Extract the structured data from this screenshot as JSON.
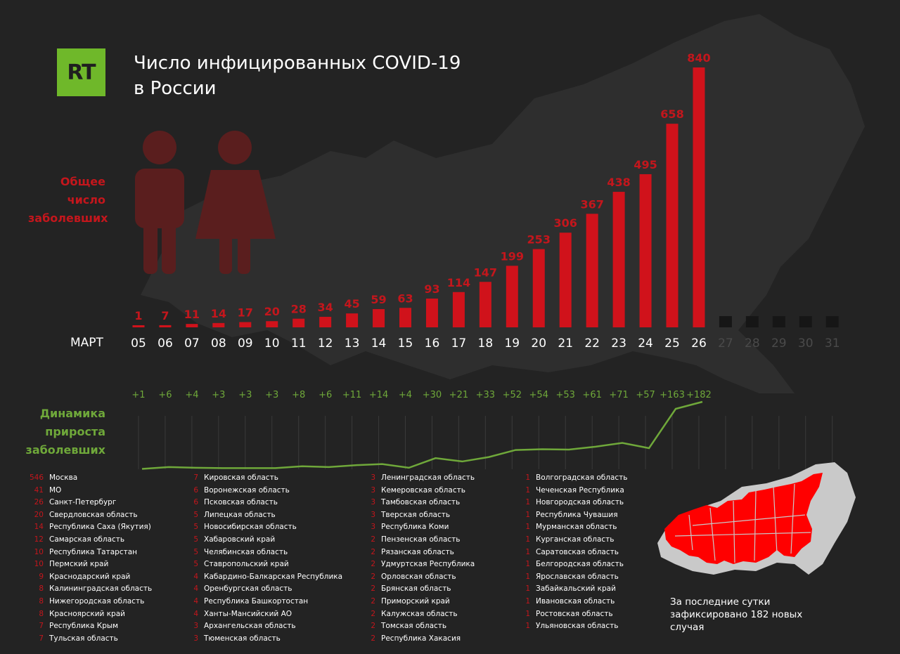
{
  "logo": "RT",
  "title_line1": "Число инфицированных COVID-19",
  "title_line2": "в России",
  "label_total": [
    "Общее",
    "число",
    "заболевших"
  ],
  "label_dynamics": [
    "Динамика",
    "прироста",
    "заболевших"
  ],
  "month_label": "МАРТ",
  "footnote": "За последние сутки зафиксировано 182 новых случая",
  "colors": {
    "bar": "#d0121b",
    "label": "#c4161c",
    "line": "#6fa83a",
    "future": "#161616",
    "background": "#232323"
  },
  "chart_data": [
    {
      "type": "bar",
      "categories": [
        "05",
        "06",
        "07",
        "08",
        "09",
        "10",
        "11",
        "12",
        "13",
        "14",
        "15",
        "16",
        "17",
        "18",
        "19",
        "20",
        "21",
        "22",
        "23",
        "24",
        "25",
        "26"
      ],
      "future_categories": [
        "27",
        "28",
        "29",
        "30",
        "31"
      ],
      "values": [
        1,
        7,
        11,
        14,
        17,
        20,
        28,
        34,
        45,
        59,
        63,
        93,
        114,
        147,
        199,
        253,
        306,
        367,
        438,
        495,
        658,
        840
      ],
      "ylim": [
        0,
        840
      ]
    },
    {
      "type": "line",
      "categories": [
        "05",
        "06",
        "07",
        "08",
        "09",
        "10",
        "11",
        "12",
        "13",
        "14",
        "15",
        "16",
        "17",
        "18",
        "19",
        "20",
        "21",
        "22",
        "23",
        "24",
        "25",
        "26"
      ],
      "values": [
        1,
        6,
        4,
        3,
        3,
        3,
        8,
        6,
        11,
        14,
        4,
        30,
        21,
        33,
        52,
        54,
        53,
        61,
        71,
        57,
        163,
        182
      ],
      "labels": [
        "+1",
        "+6",
        "+4",
        "+3",
        "+3",
        "+3",
        "+8",
        "+6",
        "+11",
        "+14",
        "+4",
        "+30",
        "+21",
        "+33",
        "+52",
        "+54",
        "+53",
        "+61",
        "+71",
        "+57",
        "+163",
        "+182"
      ]
    }
  ],
  "regions": [
    [
      [
        "546",
        "Москва"
      ],
      [
        "41",
        "МО"
      ],
      [
        "26",
        "Санкт-Петербург"
      ],
      [
        "20",
        "Свердловская область"
      ],
      [
        "14",
        "Республика Саха (Якутия)"
      ],
      [
        "12",
        "Самарская область"
      ],
      [
        "10",
        "Республика Татарстан"
      ],
      [
        "10",
        "Пермский край"
      ],
      [
        "9",
        "Краснодарский край"
      ],
      [
        "8",
        "Калининградская область"
      ],
      [
        "8",
        "Нижегородская область"
      ],
      [
        "8",
        "Красноярский край"
      ],
      [
        "7",
        "Республика Крым"
      ],
      [
        "7",
        "Тульская область"
      ]
    ],
    [
      [
        "7",
        "Кировская область"
      ],
      [
        "6",
        "Воронежская область"
      ],
      [
        "6",
        "Псковская область"
      ],
      [
        "5",
        "Липецкая область"
      ],
      [
        "5",
        "Новосибирская область"
      ],
      [
        "5",
        "Хабаровский край"
      ],
      [
        "5",
        "Челябинская область"
      ],
      [
        "5",
        "Ставропольский край"
      ],
      [
        "4",
        "Кабардино-Балкарская Республика"
      ],
      [
        "4",
        "Оренбургская область"
      ],
      [
        "4",
        "Республика Башкортостан"
      ],
      [
        "4",
        "Ханты-Мансийский АО"
      ],
      [
        "3",
        "Архангельская область"
      ],
      [
        "3",
        "Тюменская область"
      ]
    ],
    [
      [
        "3",
        "Ленинградская область"
      ],
      [
        "3",
        "Кемеровская область"
      ],
      [
        "3",
        "Тамбовская область"
      ],
      [
        "3",
        "Тверская область"
      ],
      [
        "3",
        "Республика Коми"
      ],
      [
        "2",
        "Пензенская область"
      ],
      [
        "2",
        "Рязанская область"
      ],
      [
        "2",
        "Удмуртская Республика"
      ],
      [
        "2",
        "Орловская область"
      ],
      [
        "2",
        "Брянская область"
      ],
      [
        "2",
        "Приморский край"
      ],
      [
        "2",
        "Калужская область"
      ],
      [
        "2",
        "Томская область"
      ],
      [
        "2",
        "Республика Хакасия"
      ]
    ],
    [
      [
        "1",
        "Волгоградская область"
      ],
      [
        "1",
        "Чеченская Республика"
      ],
      [
        "1",
        "Новгородская область"
      ],
      [
        "1",
        "Республика Чувашия"
      ],
      [
        "1",
        "Мурманская область"
      ],
      [
        "1",
        "Курганская область"
      ],
      [
        "1",
        "Саратовская область"
      ],
      [
        "1",
        "Белгородская область"
      ],
      [
        "1",
        "Ярославская область"
      ],
      [
        "1",
        "Забайкальский край"
      ],
      [
        "1",
        "Ивановская область"
      ],
      [
        "1",
        "Ростовская область"
      ],
      [
        "1",
        "Ульяновская область"
      ]
    ]
  ]
}
